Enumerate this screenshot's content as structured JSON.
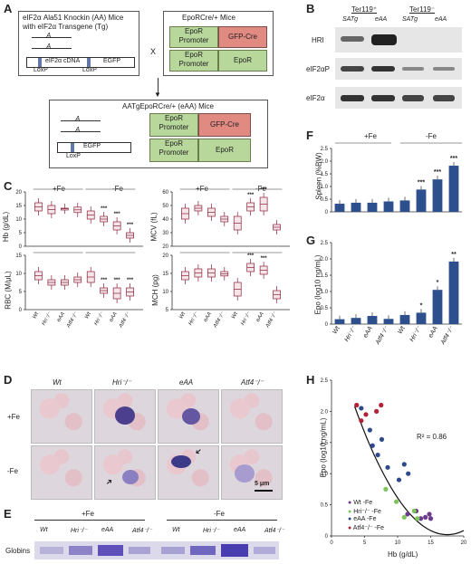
{
  "panels": {
    "A": "A",
    "B": "B",
    "C": "C",
    "D": "D",
    "E": "E",
    "F": "F",
    "G": "G",
    "H": "H"
  },
  "panelA": {
    "knockin_title": "eIF2α Ala51 Knockin (AA) Mice",
    "transgene_title": "with eIF2α Transgene (Tg)",
    "allele": "A",
    "cdna": "eIF2α cDNA",
    "egfp": "EGFP",
    "loxp": "LoxP",
    "cross": "X",
    "epor_mice": "EpoRCre/+ Mice",
    "epor_promoter": "EpoR Promoter",
    "gfp_cre": "GFP-Cre",
    "epor": "EpoR",
    "eaa_mice": "AATgEpoRCre/+ (eAA) Mice"
  },
  "panelB": {
    "ter_pos": "Ter119⁺",
    "ter_neg": "Ter119⁻",
    "lanes": [
      "SATg",
      "eAA",
      "SATg",
      "eAA"
    ],
    "rows": [
      "HRI",
      "eIF2αP",
      "eIF2α"
    ]
  },
  "panelC": {
    "fe_plus": "+Fe",
    "fe_minus": "-Fe",
    "genotypes": [
      "Wt",
      "Hri⁻/⁻",
      "eAA",
      "Atf4⁻/⁻"
    ],
    "stars": "***",
    "plots": [
      {
        "ylabel": "Hb (g/dL)",
        "ticks": [
          "20",
          "15",
          "10",
          "5",
          "0"
        ]
      },
      {
        "ylabel": "MCV (fL)",
        "ticks": [
          "60",
          "50",
          "40",
          "30",
          "20"
        ]
      },
      {
        "ylabel": "RBC (M/μL)",
        "ticks": [
          "15",
          "10",
          "5",
          "0"
        ]
      },
      {
        "ylabel": "MCH (pg)",
        "ticks": [
          "20",
          "15",
          "10",
          "5"
        ]
      }
    ]
  },
  "panelD": {
    "cols": [
      "Wt",
      "Hri⁻/⁻",
      "eAA",
      "Atf4⁻/⁻"
    ],
    "rows": [
      "+Fe",
      "-Fe"
    ],
    "scale": "5 μm"
  },
  "panelE": {
    "fe_plus": "+Fe",
    "fe_minus": "-Fe",
    "lanes": [
      "Wt",
      "Hri⁻/⁻",
      "eAA",
      "Atf4⁻/⁻",
      "Wt",
      "Hri⁻/⁻",
      "eAA",
      "Atf4⁻/⁻"
    ],
    "row_label": "Globins"
  },
  "panelF": {
    "ylabel": "Spleen (%BW)",
    "fe_plus": "+Fe",
    "fe_minus": "-Fe",
    "ticks": [
      "2.5",
      "2.0",
      "1.5",
      "1.0",
      "0.5",
      "0"
    ],
    "values": [
      0.32,
      0.36,
      0.36,
      0.41,
      0.45,
      0.88,
      1.28,
      1.82
    ],
    "stars": [
      "",
      "",
      "",
      "",
      "",
      "***",
      "***",
      "***"
    ]
  },
  "panelG": {
    "ylabel": "Epo (log10 ng/mL)",
    "ticks": [
      "2.5",
      "2.0",
      "1.5",
      "1.0",
      "0.5",
      "0"
    ],
    "genotypes": [
      "Wt",
      "Hri⁻/⁻",
      "eAA",
      "Atf4⁻/⁻",
      "Wt",
      "Hri⁻/⁻",
      "eAA",
      "Atf4⁻/⁻"
    ],
    "values": [
      0.15,
      0.19,
      0.25,
      0.16,
      0.28,
      0.35,
      1.05,
      1.92
    ],
    "stars": [
      "",
      "",
      "",
      "",
      "",
      "*",
      "*",
      "**"
    ]
  },
  "panelH": {
    "ylabel": "Epo (log10 ng/mL)",
    "xlabel": "Hb (g/dL)",
    "r2": "R² = 0.86",
    "xticks": [
      "0",
      "5",
      "10",
      "15",
      "20"
    ],
    "yticks": [
      "2.5",
      "2.0",
      "1.5",
      "1.0",
      "0.5",
      "0"
    ],
    "legend": [
      "Wt -Fe",
      "Hri⁻/⁻ -Fe",
      "eAA -Fe",
      "Atf4⁻/⁻ -Fe"
    ],
    "colors": [
      "#6b3a8f",
      "#7fc45a",
      "#2e4a8c",
      "#b3203a"
    ]
  },
  "chart_data": [
    {
      "type": "bar",
      "ylabel": "Spleen (%BW)",
      "categories": [
        "Wt +Fe",
        "Hri-/- +Fe",
        "eAA +Fe",
        "Atf4-/- +Fe",
        "Wt -Fe",
        "Hri-/- -Fe",
        "eAA -Fe",
        "Atf4-/- -Fe"
      ],
      "values": [
        0.32,
        0.36,
        0.36,
        0.41,
        0.45,
        0.88,
        1.28,
        1.82
      ],
      "ylim": [
        0,
        2.5
      ]
    },
    {
      "type": "bar",
      "ylabel": "Epo (log10 ng/mL)",
      "categories": [
        "Wt +Fe",
        "Hri-/- +Fe",
        "eAA +Fe",
        "Atf4-/- +Fe",
        "Wt -Fe",
        "Hri-/- -Fe",
        "eAA -Fe",
        "Atf4-/- -Fe"
      ],
      "values": [
        0.15,
        0.19,
        0.25,
        0.16,
        0.28,
        0.35,
        1.05,
        1.92
      ],
      "ylim": [
        0,
        2.5
      ]
    },
    {
      "type": "scatter",
      "xlabel": "Hb (g/dL)",
      "ylabel": "Epo (log10 ng/mL)",
      "xlim": [
        0,
        20
      ],
      "ylim": [
        0,
        2.5
      ],
      "series": [
        {
          "name": "Wt -Fe",
          "x": [
            11.5,
            12.8,
            13.5,
            14.2,
            14.8,
            15.0
          ],
          "y": [
            0.35,
            0.4,
            0.28,
            0.3,
            0.35,
            0.28
          ]
        },
        {
          "name": "Hri-/- -Fe",
          "x": [
            8.2,
            9.8,
            11.0,
            12.5,
            13.0
          ],
          "y": [
            0.75,
            0.55,
            0.3,
            0.4,
            0.28
          ]
        },
        {
          "name": "eAA -Fe",
          "x": [
            4.5,
            5.8,
            6.2,
            7.0,
            7.6,
            8.5,
            10.2,
            11.0,
            11.6
          ],
          "y": [
            2.05,
            1.7,
            1.45,
            1.3,
            1.55,
            1.1,
            0.9,
            1.15,
            1.0
          ]
        },
        {
          "name": "Atf4-/- -Fe",
          "x": [
            3.8,
            4.5,
            5.2,
            6.8,
            7.5
          ],
          "y": [
            2.1,
            1.85,
            1.95,
            2.0,
            2.1
          ]
        }
      ],
      "annotation": "R² = 0.86"
    }
  ]
}
